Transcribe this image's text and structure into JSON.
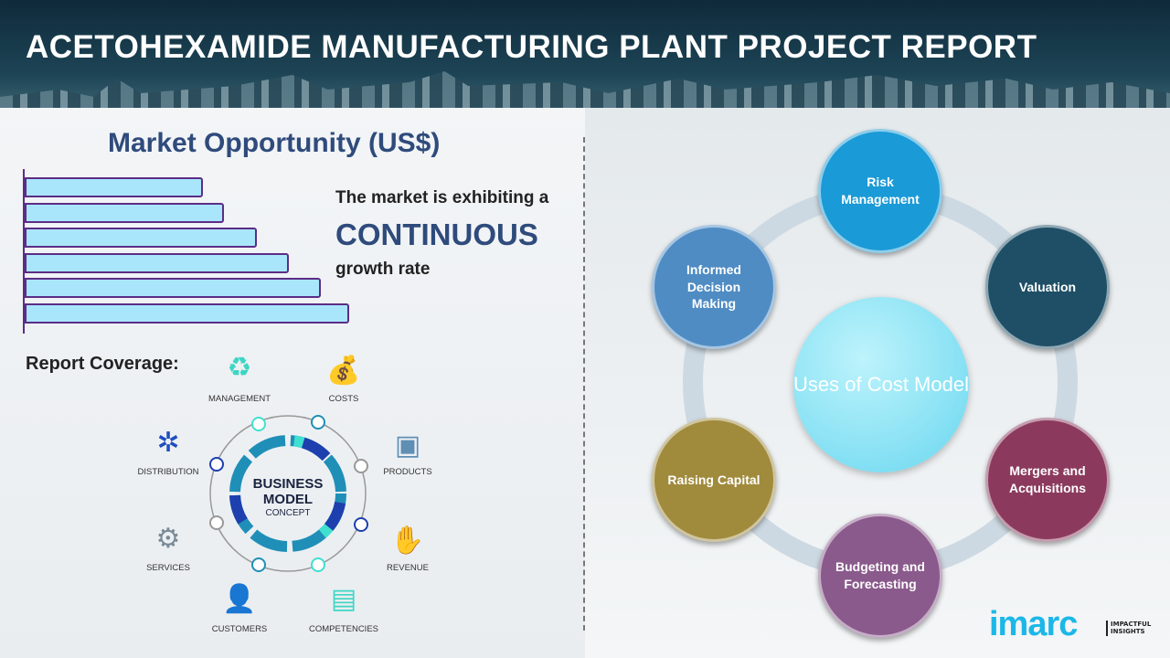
{
  "header": {
    "title": "ACETOHEXAMIDE MANUFACTURING PLANT PROJECT REPORT"
  },
  "market": {
    "title": "Market Opportunity (US$)",
    "line1": "The market is exhibiting a",
    "line2": "CONTINUOUS",
    "line3": "growth rate",
    "bars": [
      0.5,
      0.56,
      0.65,
      0.74,
      0.83,
      0.91
    ]
  },
  "coverage": {
    "title": "Report Coverage:",
    "center_line1": "BUSINESS",
    "center_line2": "MODEL",
    "center_line3": "CONCEPT",
    "items": [
      {
        "label": "MANAGEMENT",
        "icon": "lightbulb-cycle-icon"
      },
      {
        "label": "COSTS",
        "icon": "money-bag-icon"
      },
      {
        "label": "DISTRIBUTION",
        "icon": "network-icon"
      },
      {
        "label": "PRODUCTS",
        "icon": "box-icon"
      },
      {
        "label": "SERVICES",
        "icon": "gears-icon"
      },
      {
        "label": "REVENUE",
        "icon": "hand-coins-icon"
      },
      {
        "label": "CUSTOMERS",
        "icon": "person-icon"
      },
      {
        "label": "COMPETENCIES",
        "icon": "hierarchy-icon"
      }
    ]
  },
  "uses": {
    "center": "Uses of Cost Model",
    "items": [
      {
        "label": "Risk Management",
        "color": "#1a9ad6"
      },
      {
        "label": "Valuation",
        "color": "#1e4f66"
      },
      {
        "label": "Mergers and Acquisitions",
        "color": "#8b3a5e"
      },
      {
        "label": "Budgeting and Forecasting",
        "color": "#8a5a8c"
      },
      {
        "label": "Raising Capital",
        "color": "#a08a3c"
      },
      {
        "label": "Informed Decision Making",
        "color": "#4f8cc4"
      }
    ]
  },
  "logo": {
    "text": "imarc",
    "tagline1": "IMPACTFUL",
    "tagline2": "INSIGHTS"
  }
}
